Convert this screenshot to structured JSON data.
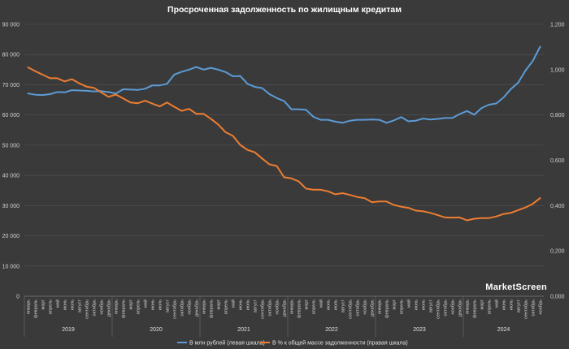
{
  "chart_data": {
    "type": "line",
    "title": "Просроченная задолженность по жилищным кредитам",
    "watermark": "MarketScreen",
    "month_labels": [
      "январь",
      "февраль",
      "март",
      "апрель",
      "май",
      "июнь",
      "июль",
      "август",
      "сентябрь",
      "октябрь",
      "ноябрь",
      "декабрь"
    ],
    "years": [
      "2019",
      "2020",
      "2021",
      "2022",
      "2023",
      "2024"
    ],
    "left_axis": {
      "min": 0,
      "max": 90000,
      "ticks": [
        "0",
        "10 000",
        "20 000",
        "30 000",
        "40 000",
        "50 000",
        "60 000",
        "70 000",
        "80 000",
        "90 000"
      ]
    },
    "right_axis": {
      "min": 0,
      "max": 1.2,
      "ticks": [
        "0,000",
        "0,200",
        "0,400",
        "0,600",
        "0,800",
        "1,000",
        "1,200"
      ]
    },
    "series": [
      {
        "name": "В млн рублей (левая шкала)",
        "axis": "left",
        "color": "#5b9bd5",
        "values": [
          67100,
          66700,
          66600,
          66900,
          67600,
          67500,
          68200,
          68100,
          68000,
          67800,
          67900,
          67600,
          67100,
          68500,
          68400,
          68300,
          68700,
          69800,
          69800,
          70300,
          73400,
          74300,
          75000,
          75900,
          75000,
          75600,
          75000,
          74200,
          72800,
          72900,
          70300,
          69300,
          68900,
          66900,
          65600,
          64600,
          61900,
          61900,
          61700,
          59400,
          58400,
          58400,
          57800,
          57400,
          58100,
          58400,
          58400,
          58500,
          58400,
          57400,
          58200,
          59300,
          57900,
          58100,
          58800,
          58500,
          58700,
          59000,
          59000,
          60300,
          61300,
          60100,
          62300,
          63400,
          63800,
          65800,
          68600,
          70700,
          74700,
          77900,
          82600
        ]
      },
      {
        "name": "В % к общей массе задолженности (правая шкала)",
        "axis": "right",
        "color": "#ed7d31",
        "values": [
          1.01,
          0.993,
          0.978,
          0.962,
          0.962,
          0.948,
          0.958,
          0.94,
          0.925,
          0.92,
          0.9,
          0.88,
          0.89,
          0.873,
          0.855,
          0.852,
          0.863,
          0.85,
          0.838,
          0.855,
          0.836,
          0.818,
          0.827,
          0.805,
          0.805,
          0.783,
          0.758,
          0.724,
          0.708,
          0.668,
          0.646,
          0.635,
          0.608,
          0.582,
          0.575,
          0.525,
          0.52,
          0.507,
          0.475,
          0.47,
          0.47,
          0.463,
          0.45,
          0.455,
          0.447,
          0.438,
          0.433,
          0.415,
          0.418,
          0.418,
          0.403,
          0.395,
          0.39,
          0.378,
          0.375,
          0.368,
          0.358,
          0.348,
          0.347,
          0.348,
          0.335,
          0.342,
          0.345,
          0.345,
          0.352,
          0.363,
          0.368,
          0.38,
          0.392,
          0.408,
          0.433
        ]
      }
    ]
  }
}
